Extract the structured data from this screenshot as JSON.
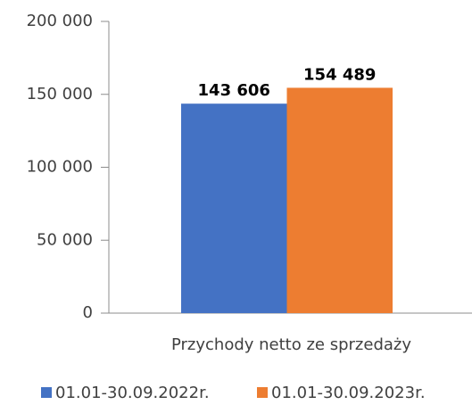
{
  "chart_data": {
    "type": "bar",
    "categories": [
      "Przychody netto ze sprzedaży"
    ],
    "series": [
      {
        "name": "01.01-30.09.2022r.",
        "color": "#4472c4",
        "values": [
          143606
        ],
        "value_labels": [
          "143 606"
        ]
      },
      {
        "name": "01.01-30.09.2023r.",
        "color": "#ed7d31",
        "values": [
          154489
        ],
        "value_labels": [
          "154 489"
        ]
      }
    ],
    "ylim": [
      0,
      200000
    ],
    "yticks": [
      0,
      {
        "value": 50000,
        "label": "50 000"
      },
      {
        "value": 100000,
        "label": "100 000"
      },
      {
        "value": 150000,
        "label": "150 000"
      },
      {
        "value": 200000,
        "label": "200 000"
      }
    ],
    "grid": false,
    "legend": "bottom"
  }
}
